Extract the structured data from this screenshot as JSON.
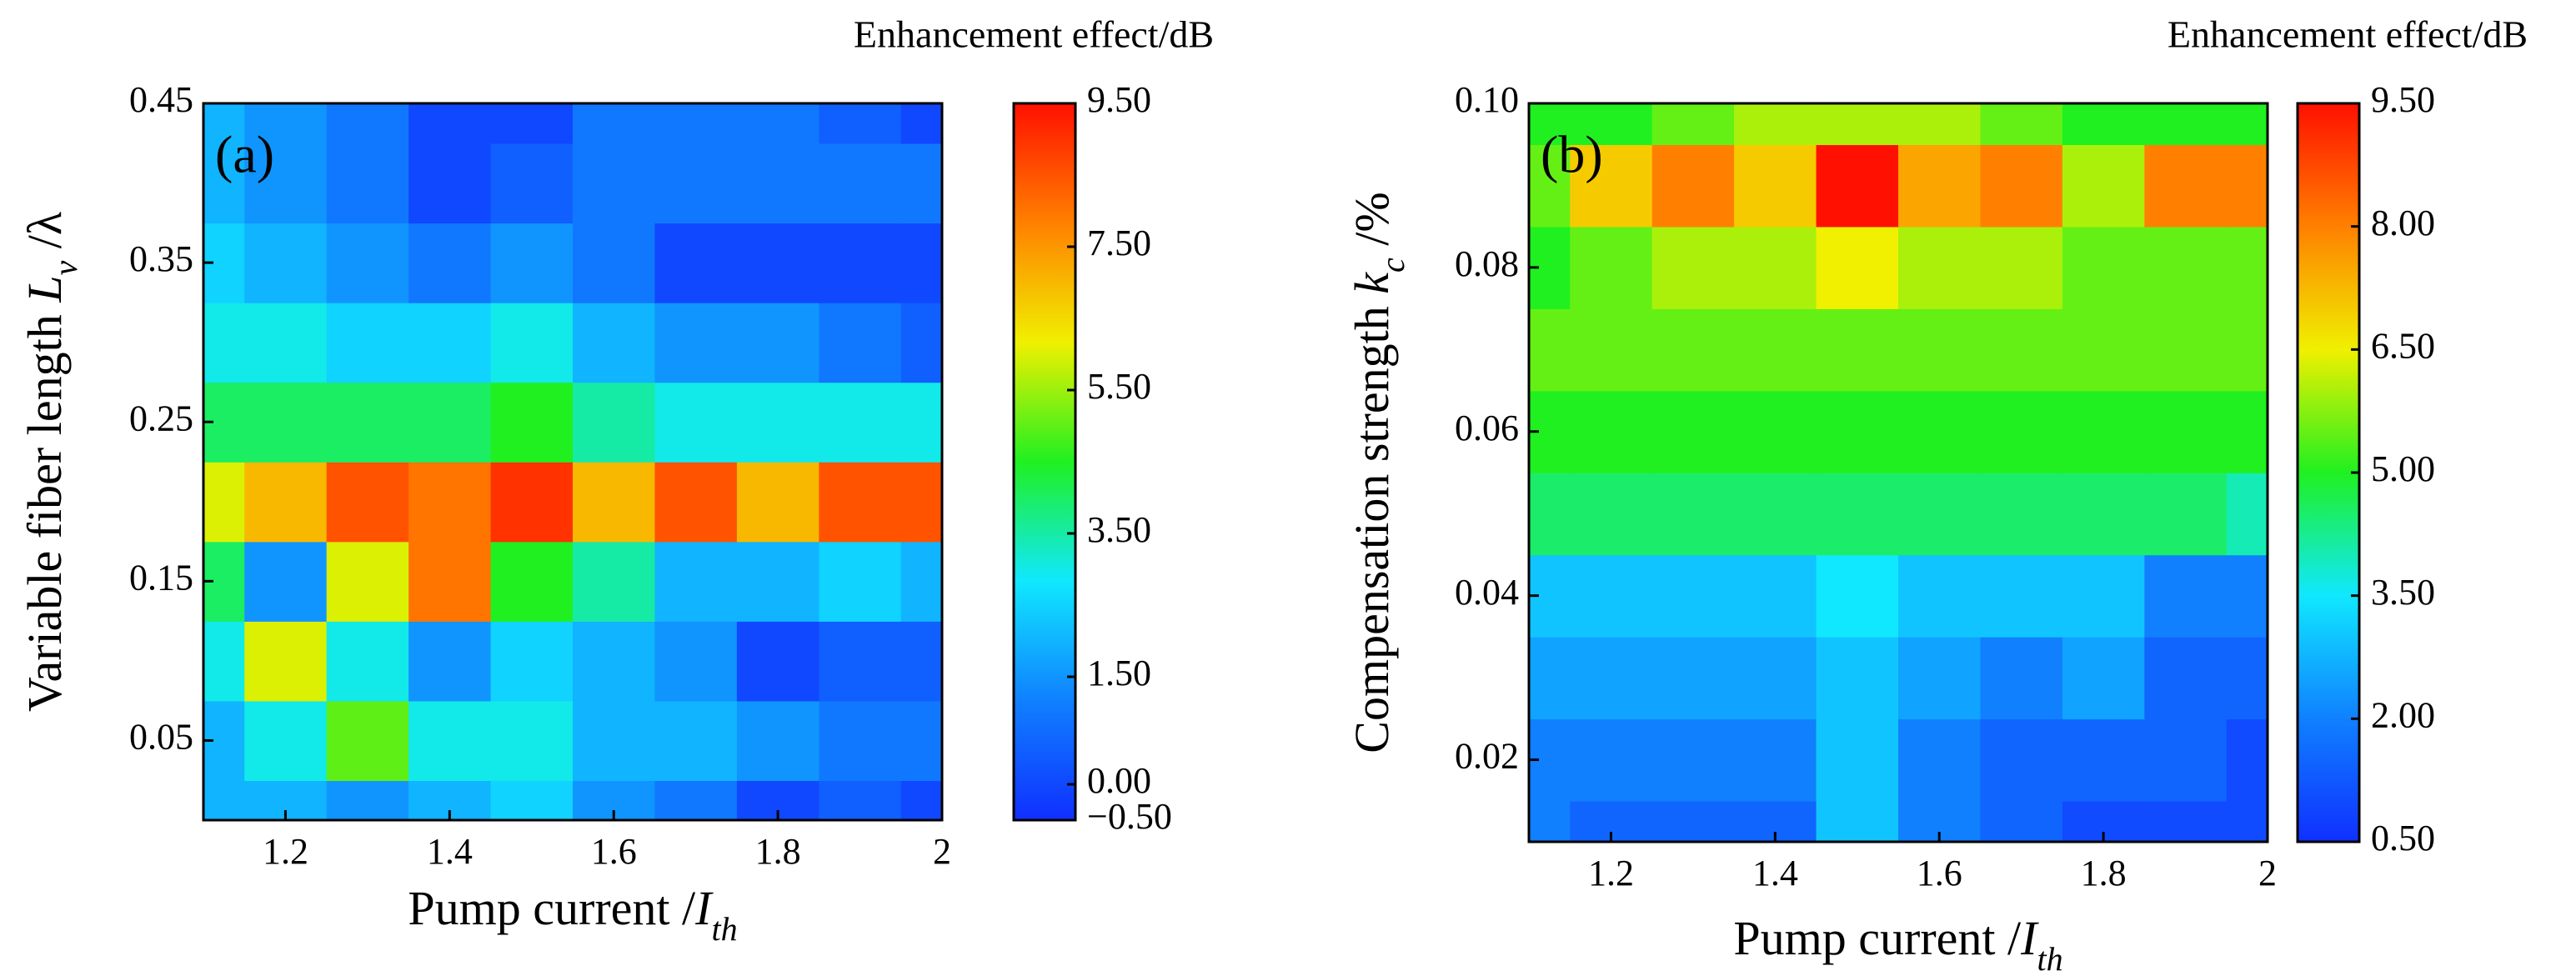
{
  "chart_data": [
    {
      "type": "heatmap",
      "panel_label": "(a)",
      "xlabel": [
        "Pump current /",
        "I",
        "th"
      ],
      "ylabel": [
        "Variable fiber length ",
        "L",
        "v",
        " /λ"
      ],
      "colorbar_label": "Enhancement effect/dB",
      "x": [
        1.1,
        1.2,
        1.3,
        1.4,
        1.5,
        1.6,
        1.7,
        1.8,
        1.9,
        2.0
      ],
      "y": [
        0.0,
        0.05,
        0.1,
        0.15,
        0.2,
        0.25,
        0.3,
        0.35,
        0.4,
        0.45
      ],
      "z": [
        [
          2,
          2,
          1.5,
          2,
          2.5,
          1.5,
          1,
          0,
          0.5,
          0
        ],
        [
          2,
          3,
          5,
          3,
          3,
          2,
          2,
          1.5,
          1,
          1
        ],
        [
          3,
          6,
          3,
          1.5,
          2.5,
          2,
          1.5,
          0,
          0.5,
          0.5
        ],
        [
          4,
          1.5,
          6,
          8,
          4.5,
          3.5,
          2,
          2,
          2.5,
          2
        ],
        [
          6,
          7,
          8.5,
          8,
          9,
          7,
          8.5,
          7,
          8.5,
          8.5
        ],
        [
          4,
          4,
          4,
          4,
          4.5,
          3.5,
          3,
          3,
          3,
          3
        ],
        [
          3,
          3,
          2.5,
          2.5,
          3,
          2,
          1.5,
          1.5,
          1,
          0.5
        ],
        [
          2.5,
          2,
          1.5,
          1,
          1.5,
          1,
          0,
          0,
          0,
          0
        ],
        [
          2,
          1.5,
          1,
          0,
          0.5,
          1,
          1,
          1,
          1,
          1
        ],
        [
          2,
          1.5,
          1,
          0,
          0,
          1,
          1,
          1,
          0.5,
          0
        ]
      ],
      "xlim": [
        1.1,
        2.0
      ],
      "xticks": [
        1.2,
        1.4,
        1.6,
        1.8,
        2
      ],
      "ylim": [
        0.0,
        0.45
      ],
      "yticks": [
        0.05,
        0.15,
        0.25,
        0.35,
        0.45
      ],
      "zlim": [
        -0.5,
        9.5
      ],
      "zticks": [
        {
          "value": 9.5,
          "label": "9.50"
        },
        {
          "value": 7.5,
          "label": "7.50"
        },
        {
          "value": 5.5,
          "label": "5.50"
        },
        {
          "value": 3.5,
          "label": "3.50"
        },
        {
          "value": 1.5,
          "label": "1.50"
        },
        {
          "value": 0,
          "label": "0.00"
        },
        {
          "value": -0.5,
          "label": "−0.50"
        }
      ],
      "colormap": [
        "#1030ff",
        "#1080ff",
        "#10e8ff",
        "#20f020",
        "#f0f000",
        "#ff8000",
        "#ff1000"
      ]
    },
    {
      "type": "heatmap",
      "panel_label": "(b)",
      "xlabel": [
        "Pump current /",
        "I",
        "th"
      ],
      "ylabel": [
        "Compensation strength ",
        "k",
        "c",
        " /%"
      ],
      "colorbar_label": "Enhancement effect/dB",
      "x": [
        1.1,
        1.2,
        1.3,
        1.4,
        1.5,
        1.6,
        1.7,
        1.8,
        1.9,
        2.0
      ],
      "y": [
        0.01,
        0.02,
        0.03,
        0.04,
        0.05,
        0.06,
        0.07,
        0.08,
        0.09,
        0.1
      ],
      "z": [
        [
          2,
          1.5,
          1.5,
          1.5,
          3,
          2,
          1.5,
          1,
          1,
          1
        ],
        [
          2,
          2,
          2,
          2,
          3,
          2,
          1.5,
          1.5,
          1.5,
          1
        ],
        [
          2.5,
          2.5,
          2.5,
          2.5,
          3,
          2.5,
          2,
          2.5,
          1.5,
          1.5
        ],
        [
          3,
          3,
          3,
          3,
          3.5,
          3,
          3,
          3,
          2,
          2
        ],
        [
          4.5,
          4.5,
          4.5,
          4.5,
          4.5,
          4.5,
          4.5,
          4.5,
          4.5,
          4
        ],
        [
          5,
          5,
          5,
          5,
          5,
          5,
          5,
          5,
          5,
          5
        ],
        [
          5.5,
          5.5,
          5.5,
          5.5,
          5.5,
          5.5,
          5.5,
          5.5,
          5.5,
          5.5
        ],
        [
          5,
          5.5,
          6,
          6,
          6.5,
          6,
          6,
          5.5,
          5.5,
          5.5
        ],
        [
          5.5,
          7,
          8,
          7,
          9.5,
          7.5,
          8,
          6,
          8,
          8
        ],
        [
          5,
          5,
          5.5,
          6,
          6,
          6,
          5.5,
          5,
          5,
          5
        ]
      ],
      "xlim": [
        1.1,
        2.0
      ],
      "xticks": [
        1.2,
        1.4,
        1.6,
        1.8,
        2
      ],
      "ylim": [
        0.01,
        0.1
      ],
      "yticks": [
        0.02,
        0.04,
        0.06,
        0.08,
        {
          "value": 0.1,
          "label": "0.10"
        }
      ],
      "zlim": [
        0.5,
        9.5
      ],
      "zticks": [
        {
          "value": 9.5,
          "label": "9.50"
        },
        {
          "value": 8,
          "label": "8.00"
        },
        {
          "value": 6.5,
          "label": "6.50"
        },
        {
          "value": 5,
          "label": "5.00"
        },
        {
          "value": 3.5,
          "label": "3.50"
        },
        {
          "value": 2,
          "label": "2.00"
        },
        {
          "value": 0.5,
          "label": "0.50"
        }
      ],
      "colormap": [
        "#1030ff",
        "#1080ff",
        "#10e8ff",
        "#20f020",
        "#f0f000",
        "#ff8000",
        "#ff1000"
      ]
    }
  ]
}
